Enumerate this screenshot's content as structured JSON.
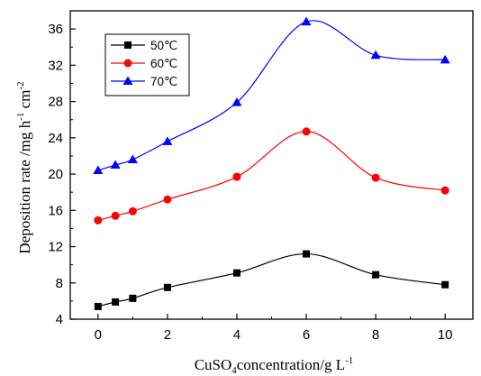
{
  "chart_data": {
    "type": "line",
    "title": "",
    "xlabel": {
      "prefix": "CuSO",
      "sub": "4",
      "suffix": "concentration/g L",
      "sup": "-1"
    },
    "ylabel": {
      "part1": "Deposition rate /mg h",
      "sup1": "-1",
      "part2": " cm",
      "sup2": "-2"
    },
    "xlim": [
      -0.8,
      10.8
    ],
    "ylim": [
      4,
      38
    ],
    "xticks": [
      0,
      2,
      4,
      6,
      8,
      10
    ],
    "yticks": [
      4,
      8,
      12,
      16,
      20,
      24,
      28,
      32,
      36
    ],
    "grid": false,
    "legend_position": "top-left",
    "series": [
      {
        "name": "50℃",
        "color": "#000000",
        "marker": "square",
        "x": [
          0,
          0.5,
          1,
          2,
          4,
          6,
          8,
          10
        ],
        "y": [
          5.4,
          5.9,
          6.3,
          7.5,
          9.1,
          11.2,
          8.9,
          7.8
        ]
      },
      {
        "name": "60℃",
        "color": "#ff0000",
        "marker": "circle",
        "x": [
          0,
          0.5,
          1,
          2,
          4,
          6,
          8,
          10
        ],
        "y": [
          14.9,
          15.4,
          15.9,
          17.2,
          19.7,
          24.7,
          19.6,
          18.2
        ]
      },
      {
        "name": "70℃",
        "color": "#0000ff",
        "marker": "triangle",
        "x": [
          0,
          0.5,
          1,
          2,
          4,
          6,
          8,
          10
        ],
        "y": [
          20.4,
          21.0,
          21.6,
          23.6,
          27.9,
          36.8,
          33.1,
          32.6
        ]
      }
    ]
  }
}
